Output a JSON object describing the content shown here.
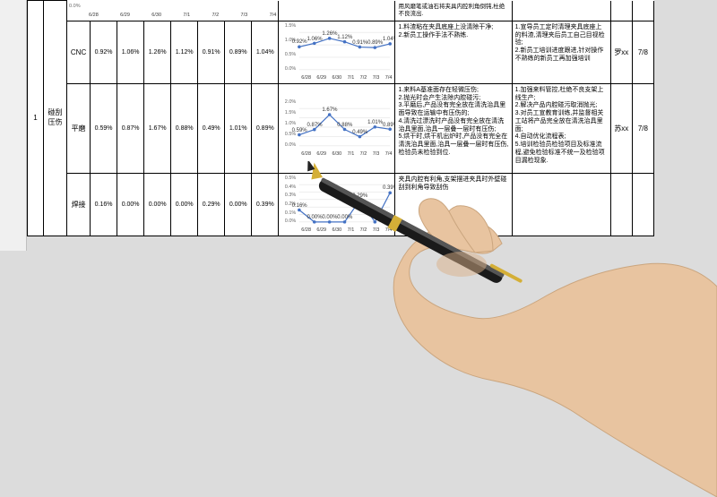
{
  "index": "1",
  "defect": "碰刮\n压伤",
  "owners": {
    "cnc": "罗xx",
    "grind": "苏xx"
  },
  "date_col": "7/8",
  "rows": [
    {
      "process": "CNC",
      "vals": [
        "0.92%",
        "1.06%",
        "1.26%",
        "1.12%",
        "0.91%",
        "0.89%",
        "1.04%"
      ],
      "chart": {
        "yticks": [
          "1.5%",
          "1.0%",
          "0.5%",
          "0.0%"
        ],
        "xlabels": [
          "6/28",
          "6/29",
          "6/30",
          "7/1",
          "7/2",
          "7/3",
          "7/4"
        ],
        "values": [
          0.92,
          1.06,
          1.26,
          1.12,
          0.91,
          0.89,
          1.04
        ],
        "ylim": [
          0,
          1.5
        ],
        "labels": [
          "0.92%",
          "1.06%",
          "1.26%",
          "1.12%",
          "0.91%",
          "0.89%",
          "1.04%"
        ],
        "line_color": "#4472c4",
        "marker_color": "#4472c4"
      },
      "cause": "1.料渣粘在夹具底座上没清除干净;\n2.新员工操作手法不熟练.",
      "action": "1.宣导员工定时清理夹具底座上的料渣,清理夹后员工自己目视检验;\n2.新员工培训进度跟进,针对操作不熟练的新员工再加强培训"
    },
    {
      "process": "平磨",
      "vals": [
        "0.59%",
        "0.87%",
        "1.67%",
        "0.88%",
        "0.49%",
        "1.01%",
        "0.89%"
      ],
      "chart": {
        "yticks": [
          "2.0%",
          "1.5%",
          "1.0%",
          "0.5%",
          "0.0%"
        ],
        "xlabels": [
          "6/28",
          "6/29",
          "6/30",
          "7/1",
          "7/2",
          "7/3",
          "7/4"
        ],
        "values": [
          0.59,
          0.87,
          1.67,
          0.88,
          0.49,
          1.01,
          0.89
        ],
        "ylim": [
          0,
          2.0
        ],
        "labels": [
          "0.59%",
          "0.87%",
          "1.67%",
          "0.88%",
          "0.49%",
          "1.01%",
          "0.89%"
        ],
        "line_color": "#4472c4",
        "marker_color": "#4472c4"
      },
      "cause": "1.来料A基准面存在轻微压伤;\n2.抛光时会产生法除内腔碰污;\n3.平磨后,产品没有完全放在清洗治具里面导致在运输中有压伤的;\n4.清洗过漂洗时产品没有完全放在清洗治具里面,治具一层叠一层时有压伤;\n5.烘干时,烘干机出炉时,产品没有完全在清洗治具里面,治具一层叠一层时有压伤,检验员未检验到位.",
      "action": "1.加强来料管控,杜绝不良支架上线生产;\n2.解决产品内腔碰污取消抛光;\n3.对员工宣教育训练,并监督相关工站将产品完全放在清洗治具里面;\n4.自动优化流程表;\n5.培训检验员检验项目及标准流程,避免检验标准不统一及检验项目漏检现象."
    },
    {
      "process": "焊接",
      "vals": [
        "0.16%",
        "0.00%",
        "0.00%",
        "0.00%",
        "0.29%",
        "0.00%",
        "0.39%"
      ],
      "chart": {
        "yticks": [
          "0.5%",
          "0.4%",
          "0.3%",
          "0.2%",
          "0.1%",
          "0.0%"
        ],
        "xlabels": [
          "6/28",
          "6/29",
          "6/30",
          "7/1",
          "7/2",
          "7/3",
          "7/4"
        ],
        "values": [
          0.16,
          0.0,
          0.0,
          0.0,
          0.29,
          0.0,
          0.39
        ],
        "ylim": [
          0,
          0.5
        ],
        "labels": [
          "0.16%",
          "0.00%",
          "0.00%",
          "0.00%",
          "0.29%",
          "",
          "0.39%"
        ],
        "line_color": "#4472c4",
        "marker_color": "#4472c4"
      },
      "cause": "夹具内腔有利角,支架摆进夹具时外壁碰刮到利角导致刮伤",
      "action": "用风磨笔或油石将夹具内腔利角倒钝,杜绝不良流出."
    }
  ],
  "prev_chart": {
    "xlabels": [
      "6/28",
      "6/29",
      "6/30",
      "7/1",
      "7/2",
      "7/3",
      "7/4"
    ],
    "ytick": "0.0%"
  }
}
